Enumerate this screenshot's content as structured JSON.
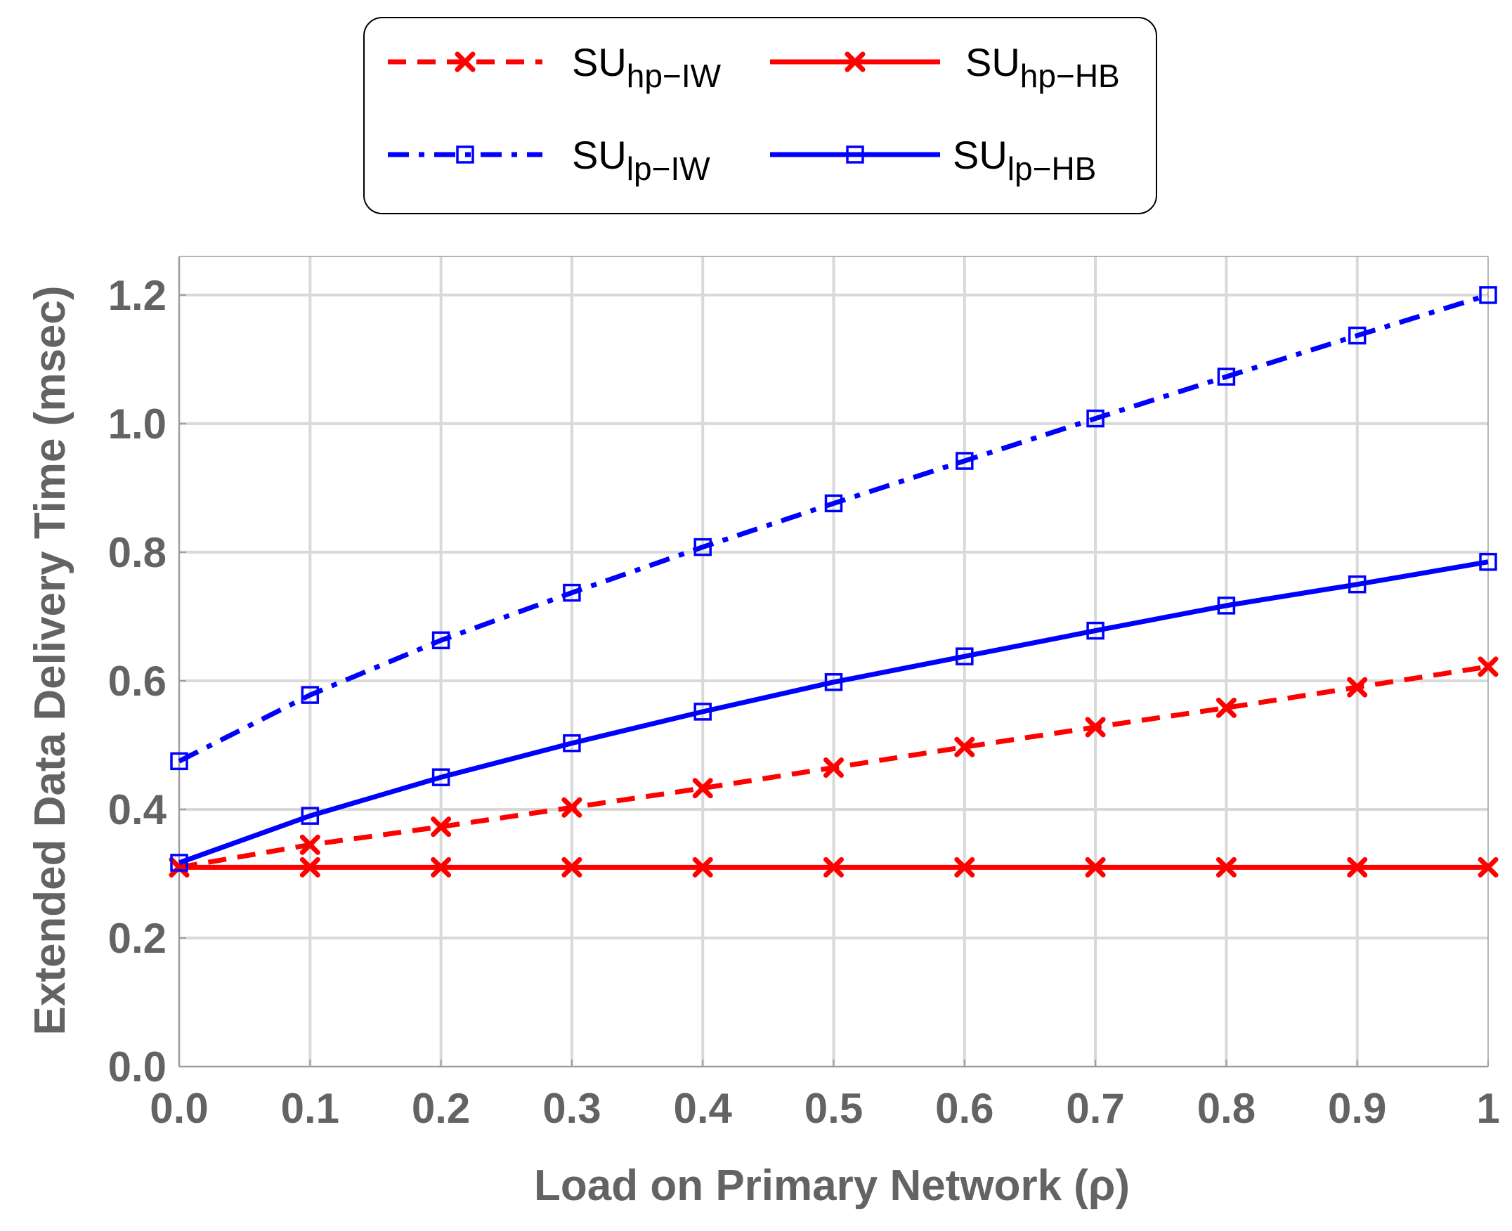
{
  "chart_data": {
    "type": "line",
    "title": "",
    "xlabel": "Load on Primary Network (ρ)",
    "ylabel": "Extended Data Delivery Time (msec)",
    "xlim": [
      0,
      1
    ],
    "ylim": [
      0,
      1.26
    ],
    "grid": true,
    "legend_position": "top",
    "x": [
      0.0,
      0.1,
      0.2,
      0.3,
      0.4,
      0.5,
      0.6,
      0.7,
      0.8,
      0.9,
      1.0
    ],
    "x_tick_labels": [
      "0.0",
      "0.1",
      "0.2",
      "0.3",
      "0.4",
      "0.5",
      "0.6",
      "0.7",
      "0.8",
      "0.9",
      "1"
    ],
    "y_ticks": [
      0.0,
      0.2,
      0.4,
      0.6,
      0.8,
      1.0,
      1.2
    ],
    "y_tick_labels": [
      "0.0",
      "0.2",
      "0.4",
      "0.6",
      "0.8",
      "1.0",
      "1.2"
    ],
    "series": [
      {
        "name": "SU_hp-IW",
        "base": "SU",
        "sub": "hp-IW",
        "color": "#ff0000",
        "dash": "dashed",
        "marker": "x",
        "values": [
          0.31,
          0.345,
          0.373,
          0.403,
          0.433,
          0.465,
          0.497,
          0.528,
          0.558,
          0.59,
          0.622
        ]
      },
      {
        "name": "SU_hp-HB",
        "base": "SU",
        "sub": "hp-HB",
        "color": "#ff0000",
        "dash": "solid",
        "marker": "x",
        "values": [
          0.31,
          0.31,
          0.31,
          0.31,
          0.31,
          0.31,
          0.31,
          0.31,
          0.31,
          0.31,
          0.31
        ]
      },
      {
        "name": "SU_lp-IW",
        "base": "SU",
        "sub": "lp-IW",
        "color": "#0000ff",
        "dash": "dashdot",
        "marker": "square",
        "values": [
          0.475,
          0.578,
          0.663,
          0.737,
          0.808,
          0.876,
          0.942,
          1.008,
          1.073,
          1.137,
          1.2
        ]
      },
      {
        "name": "SU_lp-HB",
        "base": "SU",
        "sub": "lp-HB",
        "color": "#0000ff",
        "dash": "solid",
        "marker": "square",
        "values": [
          0.317,
          0.39,
          0.45,
          0.503,
          0.552,
          0.598,
          0.638,
          0.678,
          0.717,
          0.75,
          0.785
        ]
      }
    ]
  }
}
